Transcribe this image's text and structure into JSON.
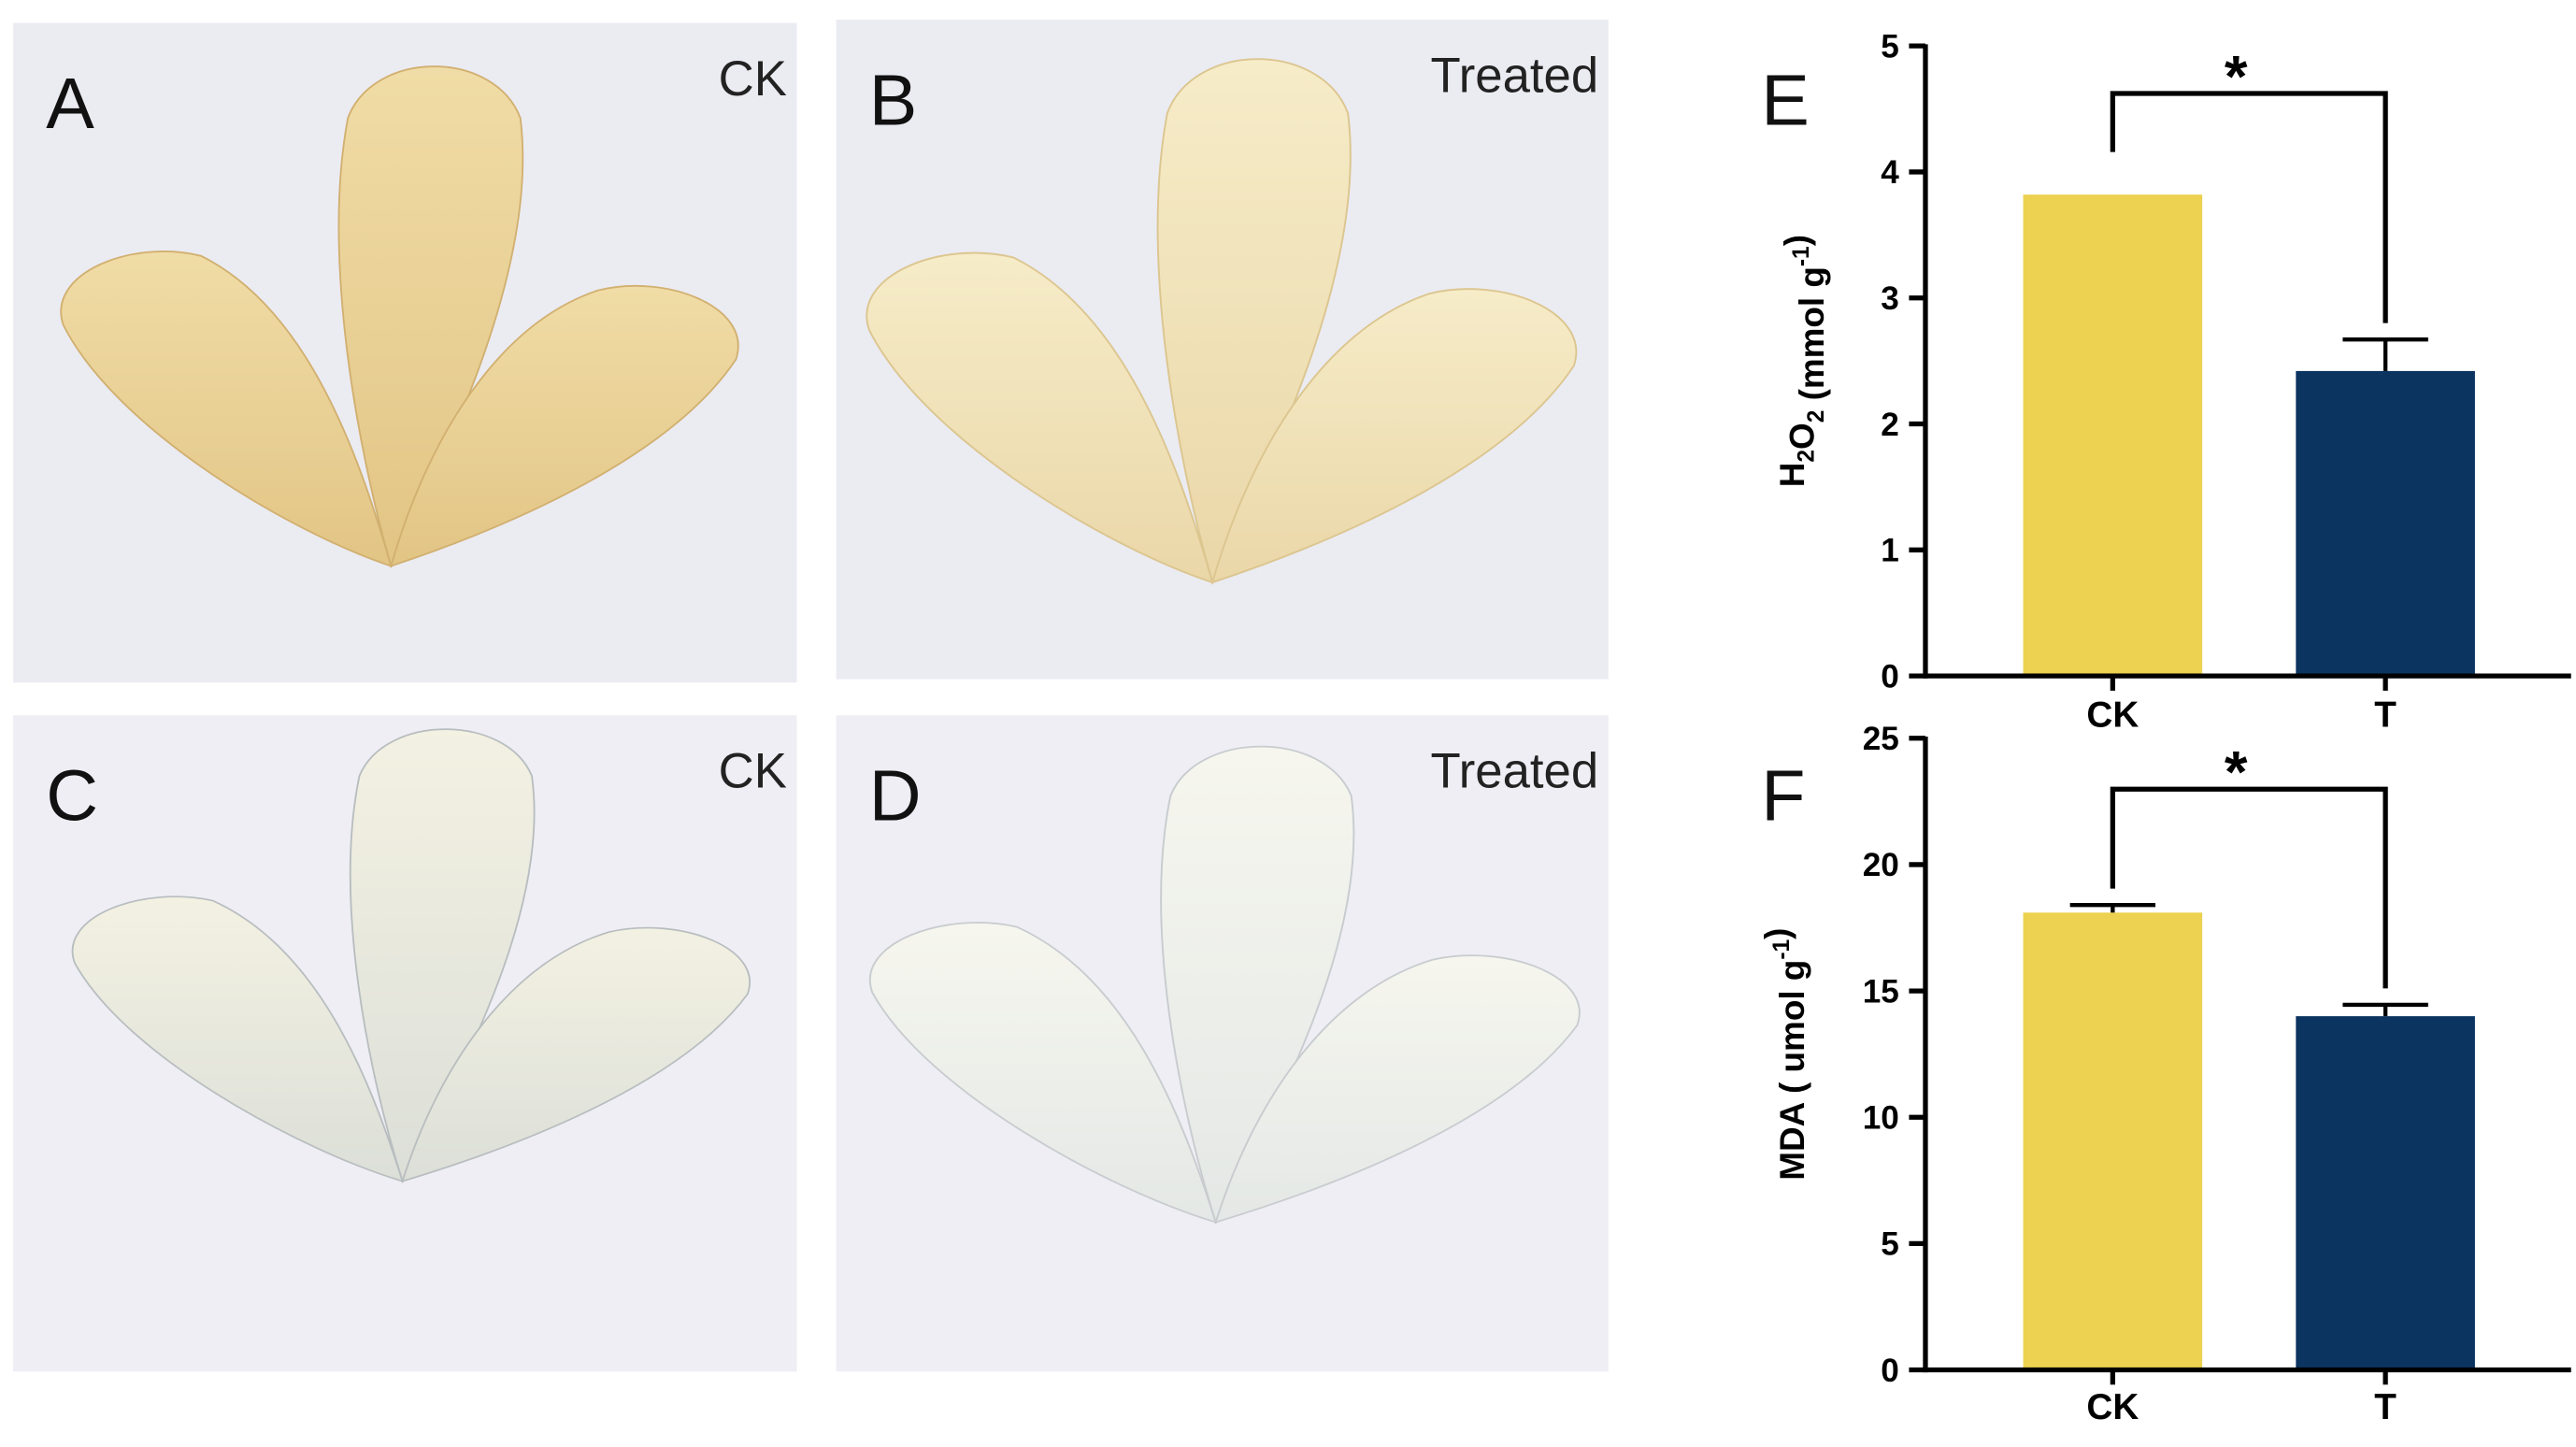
{
  "panels": [
    {
      "label": "A",
      "caption": "CK"
    },
    {
      "label": "B",
      "caption": "Treated"
    },
    {
      "label": "C",
      "caption": "CK"
    },
    {
      "label": "D",
      "caption": "Treated"
    }
  ],
  "chart_data": [
    {
      "type": "bar",
      "label": "E",
      "categories": [
        "CK",
        "T"
      ],
      "values": [
        3.82,
        2.42
      ],
      "errors": [
        null,
        0.25
      ],
      "colors": [
        "#ecd250",
        "#0c3461"
      ],
      "ylim": [
        0,
        5
      ],
      "yticks": [
        0,
        1,
        2,
        3,
        4,
        5
      ],
      "ylabel": [
        "H",
        {
          "sub": "2"
        },
        "O",
        {
          "sub": "2"
        },
        " (mmol g",
        {
          "sup": "-1"
        },
        ")"
      ],
      "annotation": "*"
    },
    {
      "type": "bar",
      "label": "F",
      "categories": [
        "CK",
        "T"
      ],
      "values": [
        18.1,
        14.0
      ],
      "errors": [
        0.3,
        0.45
      ],
      "colors": [
        "#ecd250",
        "#0c3461"
      ],
      "ylim": [
        0,
        25
      ],
      "yticks": [
        0,
        5,
        10,
        15,
        20,
        25
      ],
      "ylabel": [
        "MDA ( umol g",
        {
          "sup": "-1"
        },
        ")"
      ],
      "annotation": "*"
    }
  ]
}
